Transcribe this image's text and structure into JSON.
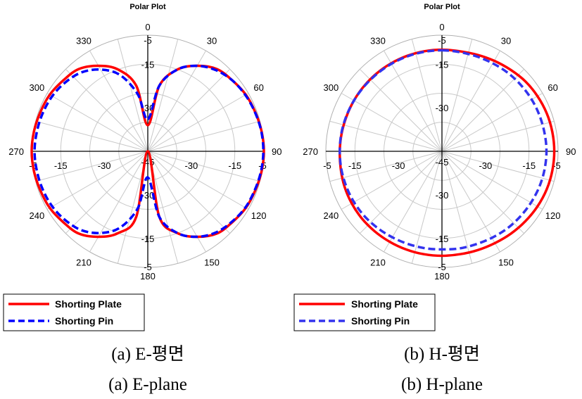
{
  "chart_data": [
    {
      "type": "polar-line",
      "title": "Polar Plot",
      "angle_ticks": [
        "0",
        "30",
        "60",
        "90",
        "120",
        "150",
        "180",
        "210",
        "240",
        "270",
        "300",
        "330"
      ],
      "radial_ticks": [
        -45,
        -30,
        -15,
        -5
      ],
      "r_range": [
        -45,
        -5
      ],
      "radial_tick_labels": [
        "-45",
        "-30",
        "-15",
        "-5"
      ],
      "series": [
        {
          "name": "Shorting Plate",
          "color": "#ff0000",
          "style": "solid",
          "angles_deg": [
            0,
            10,
            20,
            30,
            40,
            50,
            60,
            70,
            80,
            90,
            100,
            110,
            120,
            130,
            140,
            150,
            160,
            170,
            180,
            190,
            200,
            210,
            220,
            230,
            240,
            250,
            260,
            270,
            280,
            290,
            300,
            310,
            320,
            330,
            340,
            350
          ],
          "values_db": [
            -36,
            -22,
            -15,
            -11,
            -8,
            -7,
            -6,
            -5.6,
            -5.2,
            -5,
            -5.2,
            -5.6,
            -6,
            -7,
            -8,
            -11,
            -15,
            -22,
            -45,
            -22,
            -15,
            -11,
            -8,
            -7,
            -6,
            -5.6,
            -5.2,
            -5,
            -5.2,
            -5.6,
            -6,
            -7,
            -8,
            -11,
            -15,
            -22
          ]
        },
        {
          "name": "Shorting Pin",
          "color": "#0000ff",
          "style": "dashed",
          "angles_deg": [
            0,
            10,
            20,
            30,
            40,
            50,
            60,
            70,
            80,
            90,
            100,
            110,
            120,
            130,
            140,
            150,
            160,
            170,
            180,
            190,
            200,
            210,
            220,
            230,
            240,
            250,
            260,
            270,
            280,
            290,
            300,
            310,
            320,
            330,
            340,
            350
          ],
          "values_db": [
            -34,
            -22,
            -15,
            -11,
            -8.5,
            -7,
            -6.2,
            -5.7,
            -5.3,
            -5.2,
            -5.4,
            -5.8,
            -6.2,
            -7.2,
            -8.5,
            -11,
            -15,
            -22,
            -36,
            -25,
            -17,
            -12.5,
            -9.5,
            -8,
            -7,
            -6.5,
            -6.2,
            -6,
            -6.2,
            -6.5,
            -7,
            -8,
            -9.5,
            -12.5,
            -17,
            -25
          ]
        }
      ],
      "legend": {
        "location": "bottom-left",
        "entries": [
          "Shorting Plate",
          "Shorting Pin"
        ]
      },
      "caption_ko": "(a)  E-평면",
      "caption_en": "(a)  E-plane"
    },
    {
      "type": "polar-line",
      "title": "Polar Plot",
      "angle_ticks": [
        "0",
        "30",
        "60",
        "90",
        "120",
        "150",
        "180",
        "210",
        "240",
        "270",
        "300",
        "330"
      ],
      "radial_ticks": [
        -45,
        -30,
        -15,
        -5
      ],
      "r_range": [
        -45,
        -5
      ],
      "radial_tick_labels": [
        "-45",
        "-30",
        "-15",
        "-5"
      ],
      "series": [
        {
          "name": "Shorting Plate",
          "color": "#ff0000",
          "style": "solid",
          "angles_deg": [
            0,
            10,
            20,
            30,
            40,
            50,
            60,
            70,
            80,
            90,
            100,
            110,
            120,
            130,
            140,
            150,
            160,
            170,
            180,
            190,
            200,
            210,
            220,
            230,
            240,
            250,
            260,
            270,
            280,
            290,
            300,
            310,
            320,
            330,
            340,
            350
          ],
          "values_db": [
            -10,
            -10,
            -9.6,
            -9,
            -8.3,
            -7.5,
            -7,
            -6.6,
            -6.4,
            -6.3,
            -6.4,
            -6.6,
            -7,
            -7.5,
            -8,
            -8.5,
            -8.8,
            -9,
            -9,
            -9,
            -9,
            -9,
            -9,
            -9,
            -9.1,
            -9.3,
            -9.6,
            -9.8,
            -9.9,
            -10,
            -10,
            -10,
            -10,
            -10,
            -10,
            -10
          ]
        },
        {
          "name": "Shorting Pin",
          "color": "#3333ee",
          "style": "dashed",
          "angles_deg": [
            0,
            10,
            20,
            30,
            40,
            50,
            60,
            70,
            80,
            90,
            100,
            110,
            120,
            130,
            140,
            150,
            160,
            170,
            180,
            190,
            200,
            210,
            220,
            230,
            240,
            250,
            260,
            270,
            280,
            290,
            300,
            310,
            320,
            330,
            340,
            350
          ],
          "values_db": [
            -10.2,
            -10.3,
            -10.2,
            -10,
            -9.7,
            -9.5,
            -9.3,
            -9.2,
            -9.1,
            -9,
            -9.1,
            -9.3,
            -9.6,
            -9.9,
            -10.2,
            -10.6,
            -10.9,
            -11,
            -11.2,
            -11.1,
            -11,
            -10.8,
            -10.5,
            -10.2,
            -10,
            -9.9,
            -9.8,
            -9.8,
            -9.8,
            -9.9,
            -10,
            -10.1,
            -10.2,
            -10.2,
            -10.2,
            -10.2
          ]
        }
      ],
      "legend": {
        "location": "bottom-left",
        "entries": [
          "Shorting Plate",
          "Shorting Pin"
        ]
      },
      "caption_ko": "(b)  H-평면",
      "caption_en": "(b)  H-plane"
    }
  ]
}
